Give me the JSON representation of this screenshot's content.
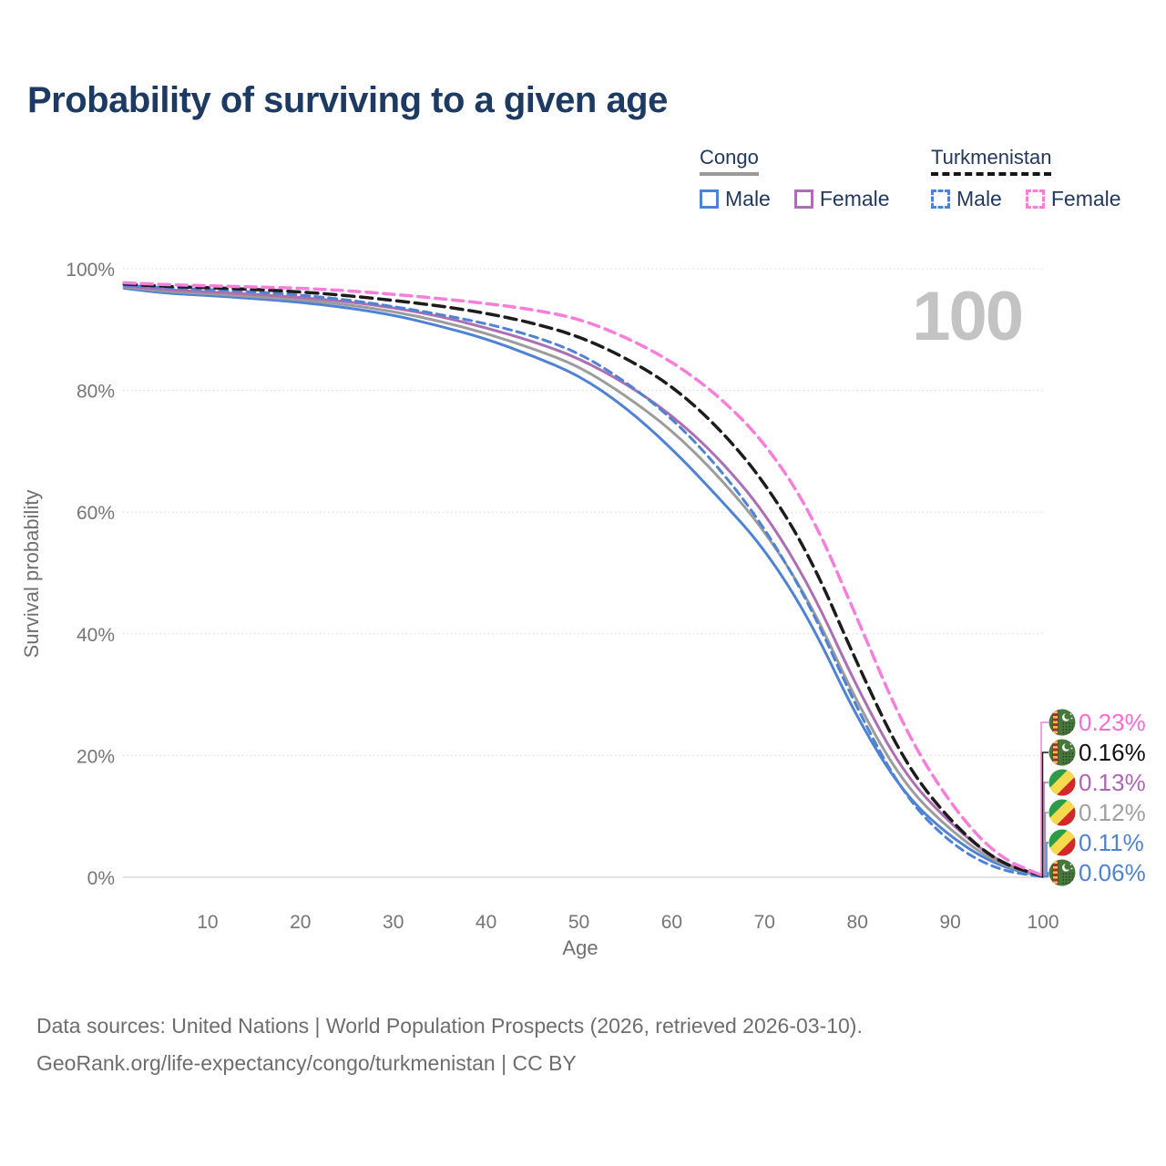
{
  "title": "Probability of surviving to a given age",
  "legend": {
    "groups": [
      {
        "name": "Congo",
        "line_style": "solid",
        "underline_color": "#9a9a9a",
        "items": [
          {
            "label": "Male",
            "color": "#4e82d4"
          },
          {
            "label": "Female",
            "color": "#ad6fb3"
          }
        ]
      },
      {
        "name": "Turkmenistan",
        "line_style": "dashed",
        "underline_color": "#151515",
        "items": [
          {
            "label": "Male",
            "color": "#4e82d4"
          },
          {
            "label": "Female",
            "color": "#f97edb"
          }
        ]
      }
    ]
  },
  "footer": {
    "line1": "Data sources: United Nations | World Population Prospects (2026, retrieved 2026-03-10).",
    "line2": "GeoRank.org/life-expectancy/congo/turkmenistan | CC BY"
  },
  "chart_data": {
    "type": "line",
    "title": "Probability of surviving to a given age",
    "xlabel": "Age",
    "ylabel": "Survival probability",
    "watermark": "100",
    "xlim": [
      0,
      100
    ],
    "ylim": [
      0,
      100
    ],
    "grid": true,
    "legend_position": "top-right",
    "x_ticks": [
      {
        "label": "10",
        "value": 10
      },
      {
        "label": "20",
        "value": 20
      },
      {
        "label": "30",
        "value": 30
      },
      {
        "label": "40",
        "value": 40
      },
      {
        "label": "50",
        "value": 50
      },
      {
        "label": "60",
        "value": 60
      },
      {
        "label": "70",
        "value": 70
      },
      {
        "label": "80",
        "value": 80
      },
      {
        "label": "90",
        "value": 90
      },
      {
        "label": "100",
        "value": 100
      }
    ],
    "y_ticks": [
      {
        "label": "0%",
        "value": 0
      },
      {
        "label": "20%",
        "value": 20
      },
      {
        "label": "40%",
        "value": 40
      },
      {
        "label": "60%",
        "value": 60
      },
      {
        "label": "80%",
        "value": 80
      },
      {
        "label": "100%",
        "value": 100
      }
    ],
    "ages": [
      1,
      5,
      10,
      15,
      20,
      25,
      30,
      35,
      40,
      45,
      50,
      55,
      60,
      65,
      70,
      75,
      80,
      85,
      90,
      95,
      100
    ],
    "series": [
      {
        "name": "Congo — Male",
        "country": "congo",
        "sex": "male",
        "color": "#4e82d4",
        "label_color": "#4e82d4",
        "line_style": "solid",
        "dash_pattern": "",
        "width": 3,
        "end_label": "0.11%",
        "values": [
          96.8,
          96.0,
          95.6,
          95.1,
          94.5,
          93.6,
          92.4,
          90.6,
          88.5,
          85.7,
          82.5,
          77.3,
          70.5,
          62.5,
          54.0,
          42.0,
          26.0,
          13.7,
          6.6,
          1.9,
          0.11
        ]
      },
      {
        "name": "Congo — Both sexes",
        "country": "congo",
        "sex": "both",
        "color": "#9c9c9c",
        "label_color": "#a0a0a0",
        "line_style": "solid",
        "dash_pattern": "",
        "width": 3,
        "end_label": "0.12%",
        "values": [
          97.0,
          96.3,
          95.9,
          95.4,
          94.9,
          94.1,
          93.0,
          91.4,
          89.4,
          86.9,
          84.0,
          79.2,
          73.5,
          66.0,
          57.0,
          45.0,
          28.5,
          15.3,
          7.7,
          2.2,
          0.12
        ]
      },
      {
        "name": "Congo — Female",
        "country": "congo",
        "sex": "female",
        "color": "#ad6fb3",
        "label_color": "#b164b4",
        "line_style": "solid",
        "dash_pattern": "",
        "width": 3,
        "end_label": "0.13%",
        "values": [
          97.2,
          96.6,
          96.2,
          95.8,
          95.3,
          94.6,
          93.6,
          92.2,
          90.3,
          88.1,
          85.3,
          81.2,
          76.0,
          69.0,
          60.0,
          47.5,
          31.0,
          17.0,
          8.8,
          2.6,
          0.13
        ]
      },
      {
        "name": "Turkmenistan — Male",
        "country": "turkmenistan",
        "sex": "male",
        "color": "#4e82d4",
        "label_color": "#4e82d4",
        "line_style": "dashed",
        "dash_pattern": "9 6",
        "width": 3,
        "end_label": "0.06%",
        "values": [
          97.3,
          96.9,
          96.6,
          96.2,
          95.7,
          94.9,
          93.8,
          92.5,
          91.0,
          89.0,
          86.2,
          81.5,
          75.5,
          67.5,
          57.5,
          44.5,
          27.5,
          13.5,
          5.5,
          1.2,
          0.06
        ]
      },
      {
        "name": "Turkmenistan — Both sexes",
        "country": "turkmenistan",
        "sex": "both",
        "color": "#1c1c1c",
        "label_color": "#111111",
        "line_style": "dashed",
        "dash_pattern": "13 7",
        "width": 3.5,
        "end_label": "0.16%",
        "values": [
          97.5,
          97.1,
          96.9,
          96.6,
          96.2,
          95.6,
          94.8,
          93.9,
          92.7,
          91.1,
          88.9,
          85.4,
          80.8,
          74.0,
          65.0,
          52.5,
          35.0,
          19.0,
          9.2,
          2.5,
          0.16
        ]
      },
      {
        "name": "Turkmenistan — Female",
        "country": "turkmenistan",
        "sex": "female",
        "color": "#f97edb",
        "label_color": "#fa6ad2",
        "line_style": "dashed",
        "dash_pattern": "12 7",
        "width": 3.5,
        "end_label": "0.23%",
        "values": [
          97.7,
          97.4,
          97.2,
          97.0,
          96.8,
          96.4,
          95.8,
          95.1,
          94.3,
          93.3,
          91.8,
          88.8,
          84.8,
          79.2,
          71.5,
          60.0,
          42.5,
          24.5,
          12.0,
          3.4,
          0.23
        ]
      }
    ]
  }
}
